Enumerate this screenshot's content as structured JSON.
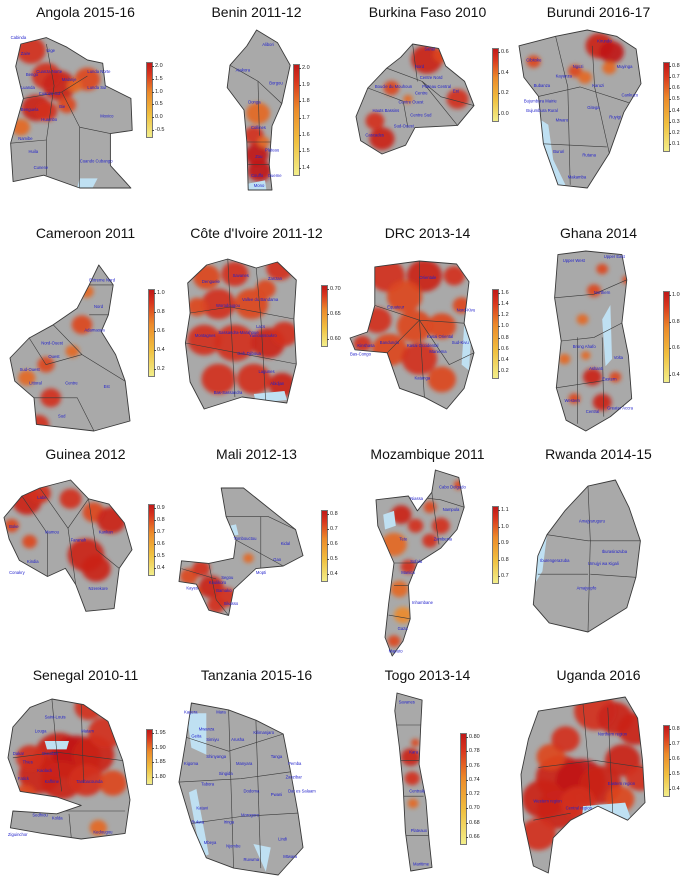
{
  "figure_colors": {
    "land": "#a9a9a9",
    "border": "#3a3a3a",
    "water": "#bfe0f2",
    "label": "#2222cc",
    "scale_low": "#f2ee8a",
    "scale_high": "#c01818"
  },
  "panels": [
    {
      "title": "Angola 2015-16",
      "ticks": [
        "2.0",
        "1.5",
        "1.0",
        "0.5",
        "0.0",
        "-0.5"
      ],
      "labels": [
        "Cabinda",
        "Zaire",
        "Uige",
        "Bengo",
        "Cuanza Norte",
        "Malanje",
        "Lunda Norte",
        "Luanda",
        "Cuanza Sul",
        "Lunda Sul",
        "Benguela",
        "Bie",
        "Moxico",
        "Huambo",
        "Namibe",
        "Huila",
        "Cunene",
        "Cuando Cubango"
      ]
    },
    {
      "title": "Benin 2011-12",
      "ticks": [
        "2.0",
        "1.9",
        "1.8",
        "1.7",
        "1.6",
        "1.5",
        "1.4"
      ],
      "labels": [
        "Alibori",
        "Atakora",
        "Borgou",
        "Donga",
        "Collines",
        "Zou",
        "Plateau",
        "Oueme",
        "Couffo",
        "Mono"
      ]
    },
    {
      "title": "Burkina Faso 2010",
      "ticks": [
        "0.6",
        "0.4",
        "0.2",
        "0.0"
      ],
      "labels": [
        "Sahel",
        "Nord",
        "Centre Nord",
        "Boucle du Mouhoun",
        "Est",
        "Centre",
        "Plateau Central",
        "Hauts Bassins",
        "Centre Ouest",
        "Centre Sud",
        "Cascades",
        "Sud-Ouest"
      ]
    },
    {
      "title": "Burundi 2016-17",
      "ticks": [
        "0.8",
        "0.7",
        "0.6",
        "0.5",
        "0.4",
        "0.3",
        "0.2",
        "0.1"
      ],
      "labels": [
        "Kirundo",
        "Cibitoke",
        "Ngozi",
        "Muyinga",
        "Kayanza",
        "Bubanza",
        "Karuzi",
        "Cankuzo",
        "Bujumbura Mairie",
        "Bujumbura Rural",
        "Gitega",
        "Ruyigi",
        "Mwaro",
        "Bururi",
        "Rutana",
        "Makamba"
      ]
    },
    {
      "title": "Cameroon 2011",
      "ticks": [
        "1.0",
        "0.8",
        "0.6",
        "0.4",
        "0.2"
      ],
      "labels": [
        "Extreme Nord",
        "Nord",
        "Adamaoua",
        "Nord-Ouest",
        "Ouest",
        "Sud-Ouest",
        "Littoral",
        "Centre",
        "Est",
        "Sud"
      ]
    },
    {
      "title": "Côte d'Ivoire 2011-12",
      "ticks": [
        "0.70",
        "0.65",
        "0.60"
      ],
      "labels": [
        "Denguele",
        "Savanes",
        "Zanzan",
        "Worodougou",
        "Vallee du Bandama",
        "Montagnes",
        "Sassandra-Marahoue",
        "Lacs",
        "Yamoussoukro",
        "Goh-Djiboua",
        "Lagunes",
        "Abidjan",
        "Bas-Sassandra"
      ]
    },
    {
      "title": "DRC 2013-14",
      "ticks": [
        "1.6",
        "1.4",
        "1.2",
        "1.0",
        "0.8",
        "0.6",
        "0.4",
        "0.2"
      ],
      "labels": [
        "Orientale",
        "Equateur",
        "Nord-Kivu",
        "Kinshasa",
        "Bandundu",
        "Kasai Oriental",
        "Sud-Kivu",
        "Bas-Congo",
        "Kasai Occidental",
        "Maniema",
        "Katanga"
      ]
    },
    {
      "title": "Ghana 2014",
      "ticks": [
        "1.0",
        "0.8",
        "0.6",
        "0.4"
      ],
      "labels": [
        "Upper West",
        "Upper East",
        "Northern",
        "Brong Ahafo",
        "Volta",
        "Ashanti",
        "Eastern",
        "Western",
        "Greater Accra",
        "Central"
      ]
    },
    {
      "title": "Guinea 2012",
      "ticks": [
        "0.9",
        "0.8",
        "0.7",
        "0.6",
        "0.5",
        "0.4"
      ],
      "labels": [
        "Labe",
        "Boke",
        "Mamou",
        "Faranah",
        "Kankan",
        "Kindia",
        "Conakry",
        "Nzerekore"
      ]
    },
    {
      "title": "Mali 2012-13",
      "ticks": [
        "0.8",
        "0.7",
        "0.6",
        "0.5",
        "0.4"
      ],
      "labels": [
        "Tombouctou",
        "Kidal",
        "Gao",
        "Mopti",
        "Kayes",
        "Koulikoro",
        "Segou",
        "Bamako",
        "Sikasso"
      ]
    },
    {
      "title": "Mozambique 2011",
      "ticks": [
        "1.1",
        "1.0",
        "0.9",
        "0.8",
        "0.7"
      ],
      "labels": [
        "Niassa",
        "Cabo Delgado",
        "Tete",
        "Nampula",
        "Zambezia",
        "Manica",
        "Sofala",
        "Inhambane",
        "Gaza",
        "Maputo"
      ]
    },
    {
      "title": "Rwanda 2014-15",
      "ticks": [],
      "labels": [
        "Amajyaruguru",
        "Iburengerazuba",
        "Umujyi wa Kigali",
        "Iburasirazuba",
        "Amajyepfo"
      ]
    },
    {
      "title": "Senegal 2010-11",
      "ticks": [
        "1.95",
        "1.90",
        "1.85",
        "1.80"
      ],
      "labels": [
        "Saint-Louis",
        "Louga",
        "Matam",
        "Dakar",
        "Thies",
        "Diourbel",
        "Fatick",
        "Kaolack",
        "Kaffrine",
        "Tambacounda",
        "Kolda",
        "Ziguinchor",
        "Sedhiou",
        "Kedougou"
      ]
    },
    {
      "title": "Tanzania 2015-16",
      "ticks": [],
      "labels": [
        "Kagera",
        "Mara",
        "Mwanza",
        "Geita",
        "Simiyu",
        "Arusha",
        "Kilimanjaro",
        "Kigoma",
        "Shinyanga",
        "Manyara",
        "Tanga",
        "Tabora",
        "Singida",
        "Dodoma",
        "Pemba",
        "Zanzibar",
        "Dar es Salaam",
        "Pwani",
        "Katavi",
        "Rukwa",
        "Mbeya",
        "Iringa",
        "Morogoro",
        "Njombe",
        "Ruvuma",
        "Lindi",
        "Mtwara"
      ]
    },
    {
      "title": "Togo 2013-14",
      "ticks": [
        "0.80",
        "0.78",
        "0.76",
        "0.74",
        "0.72",
        "0.70",
        "0.68",
        "0.66"
      ],
      "labels": [
        "Savanes",
        "Kara",
        "Centrale",
        "Plateaux",
        "Maritime"
      ]
    },
    {
      "title": "Uganda 2016",
      "ticks": [
        "0.8",
        "0.7",
        "0.6",
        "0.5",
        "0.4"
      ],
      "labels": [
        "Northern region",
        "Western region",
        "Central region",
        "Eastern region"
      ]
    }
  ]
}
